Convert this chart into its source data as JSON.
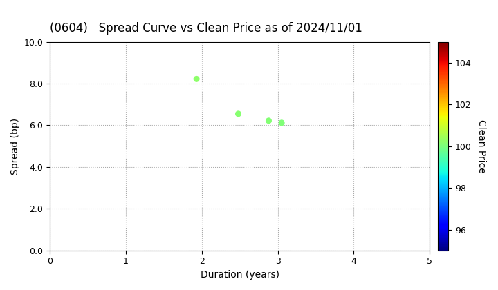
{
  "title": "(0604)   Spread Curve vs Clean Price as of 2024/11/01",
  "xlabel": "Duration (years)",
  "ylabel": "Spread (bp)",
  "colorbar_label": "Clean Price",
  "points": [
    {
      "duration": 1.93,
      "spread": 8.22,
      "clean_price": 100.2
    },
    {
      "duration": 2.48,
      "spread": 6.55,
      "clean_price": 100.15
    },
    {
      "duration": 2.88,
      "spread": 6.22,
      "clean_price": 100.1
    },
    {
      "duration": 3.05,
      "spread": 6.12,
      "clean_price": 100.05
    }
  ],
  "xlim": [
    0,
    5
  ],
  "ylim": [
    0,
    10
  ],
  "xticks": [
    0,
    1,
    2,
    3,
    4,
    5
  ],
  "yticks": [
    0.0,
    2.0,
    4.0,
    6.0,
    8.0,
    10.0
  ],
  "cmap": "jet",
  "clim": [
    95,
    105
  ],
  "cticks": [
    96,
    98,
    100,
    102,
    104
  ],
  "marker_size": 30,
  "background_color": "#ffffff",
  "grid_color": "#aaaaaa",
  "grid_linestyle": ":",
  "title_fontsize": 12,
  "label_fontsize": 10,
  "tick_fontsize": 9,
  "figwidth": 7.2,
  "figheight": 4.2,
  "dpi": 100
}
